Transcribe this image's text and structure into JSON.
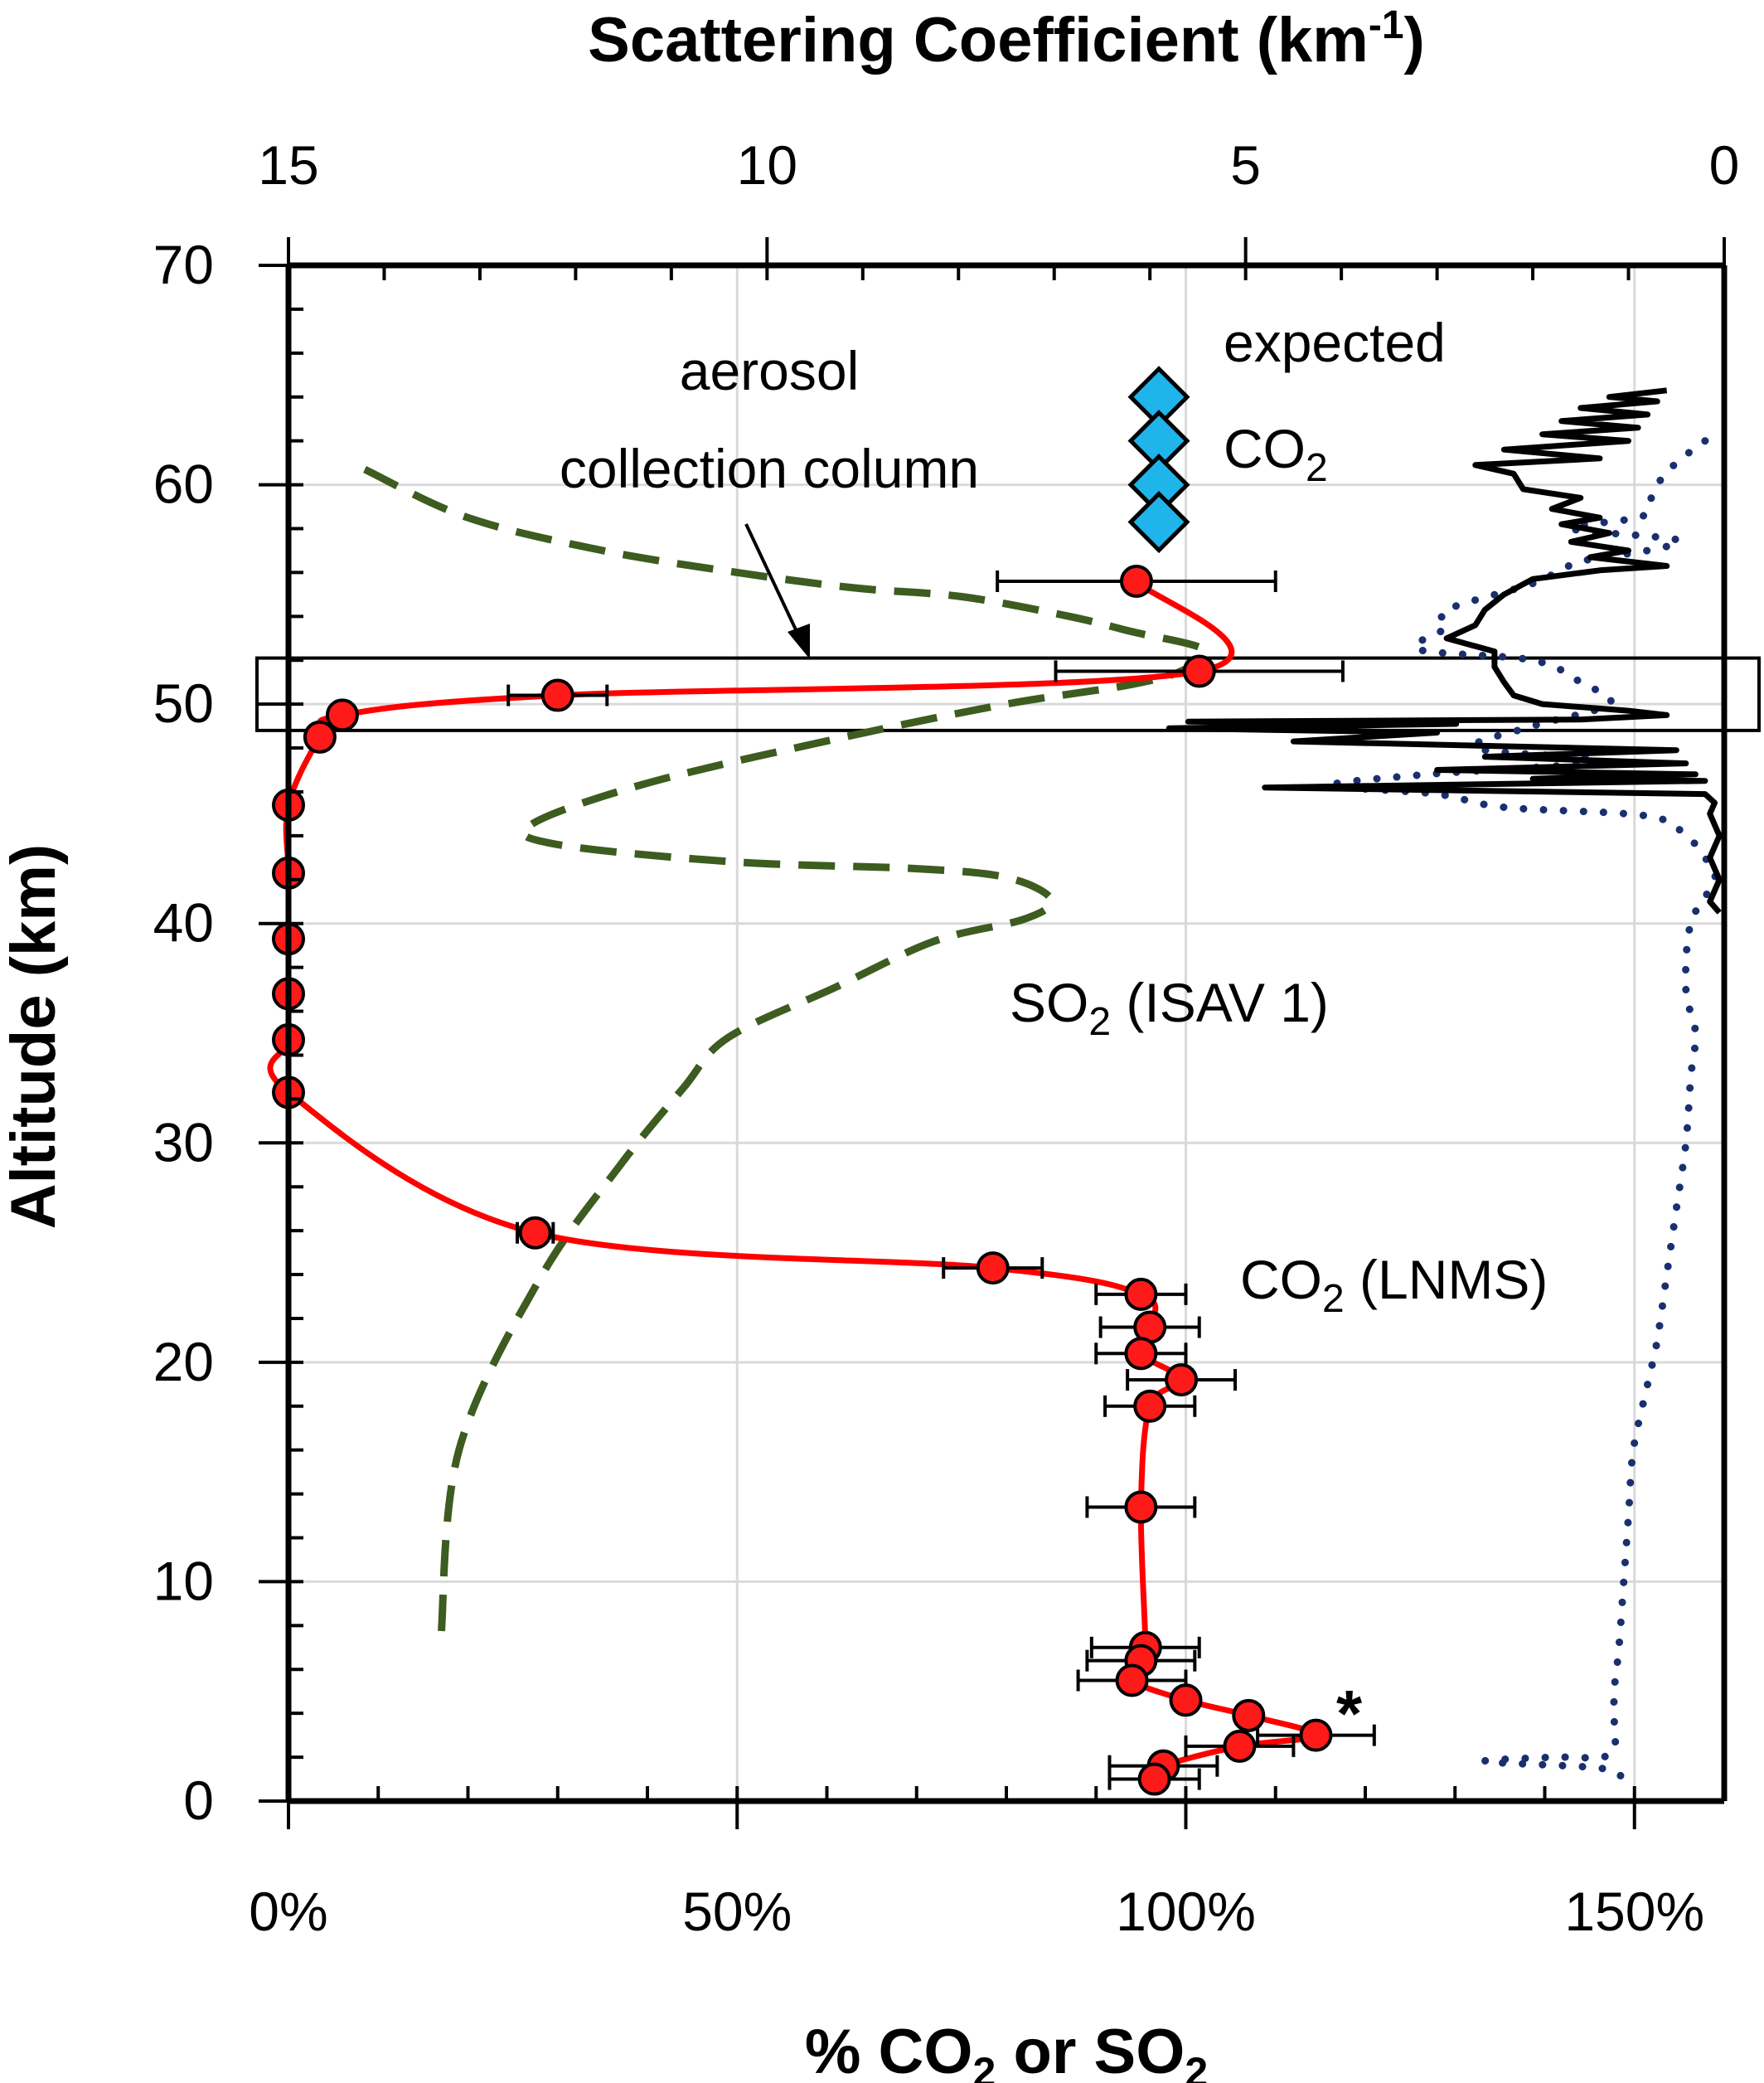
{
  "chart_data": {
    "type": "line",
    "title": "",
    "top_axis": {
      "label": "Scattering Coefficient (km",
      "label_superscript": "-1",
      "label_suffix": ")",
      "range": [
        15,
        0
      ],
      "ticks": [
        15,
        10,
        5,
        0
      ]
    },
    "bottom_axis": {
      "label_parts": [
        "% CO",
        "2",
        " or SO",
        "2"
      ],
      "range": [
        0,
        160
      ],
      "ticks": [
        0,
        50,
        100,
        150
      ],
      "tick_labels": [
        "0%",
        "50%",
        "100%",
        "150%"
      ]
    },
    "y_axis": {
      "label": "Altitude (km)",
      "range": [
        0,
        70
      ],
      "ticks": [
        0,
        10,
        20,
        30,
        40,
        50,
        60,
        70
      ]
    },
    "grid": true,
    "annotations": {
      "aerosol_line1": "aerosol",
      "aerosol_line2": "collection column",
      "expected_line1": "expected",
      "expected_co2_prefix": "CO",
      "expected_co2_sub": "2",
      "so2_label_prefix": "SO",
      "so2_label_sub": "2",
      "so2_label_suffix": " (ISAV 1)",
      "co2_label_prefix": "CO",
      "co2_label_sub": "2",
      "co2_label_suffix": " (LNMS)",
      "asterisk": "*"
    },
    "aerosol_column_km": [
      48.8,
      52.1
    ],
    "series": [
      {
        "name": "CO2 (LNMS)",
        "color": "#ff0000",
        "marker_fill": "#ff1a1a",
        "units": "percent",
        "points": [
          {
            "alt": 55.6,
            "val": 94.5,
            "err": 15.5
          },
          {
            "alt": 51.5,
            "val": 101.5,
            "err": 16
          },
          {
            "alt": 50.4,
            "val": 30.0,
            "err": 5.5
          },
          {
            "alt": 49.5,
            "val": 6.0,
            "err": 0
          },
          {
            "alt": 48.5,
            "val": 3.5,
            "err": 0
          },
          {
            "alt": 45.4,
            "val": 0,
            "err": 0
          },
          {
            "alt": 42.3,
            "val": 0,
            "err": 0
          },
          {
            "alt": 39.3,
            "val": 0,
            "err": 0
          },
          {
            "alt": 36.8,
            "val": 0,
            "err": 0
          },
          {
            "alt": 34.7,
            "val": 0,
            "err": 0
          },
          {
            "alt": 32.3,
            "val": 0,
            "err": 0
          },
          {
            "alt": 25.9,
            "val": 27.5,
            "err": 2
          },
          {
            "alt": 24.3,
            "val": 78.5,
            "err": 5.5
          },
          {
            "alt": 23.1,
            "val": 95.0,
            "err": 5
          },
          {
            "alt": 21.6,
            "val": 96.0,
            "err": 5.5
          },
          {
            "alt": 20.4,
            "val": 95.0,
            "err": 5
          },
          {
            "alt": 19.2,
            "val": 99.5,
            "err": 6
          },
          {
            "alt": 18.0,
            "val": 96.0,
            "err": 5
          },
          {
            "alt": 13.4,
            "val": 95.0,
            "err": 6
          },
          {
            "alt": 7.0,
            "val": 95.5,
            "err": 6
          },
          {
            "alt": 6.4,
            "val": 95.0,
            "err": 6
          },
          {
            "alt": 5.5,
            "val": 94.0,
            "err": 6
          },
          {
            "alt": 4.6,
            "val": 100.0,
            "err": 0
          },
          {
            "alt": 3.9,
            "val": 107.0,
            "err": 0
          },
          {
            "alt": 3.0,
            "val": 114.5,
            "err": 6.5
          },
          {
            "alt": 2.5,
            "val": 106.0,
            "err": 6
          },
          {
            "alt": 1.6,
            "val": 97.5,
            "err": 6
          },
          {
            "alt": 1.0,
            "val": 96.5,
            "err": 5
          }
        ]
      },
      {
        "name": "SO2 (ISAV 1)",
        "color": "#3d5c1f",
        "style": "dashed",
        "units": "percent",
        "points": [
          [
            8.5,
            60.7
          ],
          [
            20,
            58.5
          ],
          [
            35,
            57.0
          ],
          [
            50,
            56.0
          ],
          [
            63,
            55.3
          ],
          [
            75,
            54.9
          ],
          [
            87,
            54.0
          ],
          [
            94,
            53.3
          ],
          [
            102,
            52.5
          ],
          [
            100,
            51.6
          ],
          [
            94,
            50.9
          ],
          [
            80,
            50.0
          ],
          [
            62,
            48.5
          ],
          [
            40,
            46.4
          ],
          [
            27,
            44.5
          ],
          [
            30,
            43.6
          ],
          [
            50,
            42.8
          ],
          [
            70,
            42.5
          ],
          [
            80,
            42.1
          ],
          [
            85,
            41.1
          ],
          [
            82,
            40.2
          ],
          [
            72,
            39.2
          ],
          [
            61,
            37.1
          ],
          [
            49,
            34.8
          ],
          [
            44,
            32.5
          ],
          [
            37,
            29.0
          ],
          [
            28,
            23.8
          ],
          [
            19,
            16.0
          ],
          [
            17,
            7.5
          ]
        ]
      },
      {
        "name": "expected CO2",
        "color": "#1fb4ea",
        "marker": "diamond",
        "units": "percent",
        "points": [
          [
            97,
            64.0
          ],
          [
            97,
            62.0
          ],
          [
            97,
            60.0
          ],
          [
            97,
            58.3
          ]
        ]
      },
      {
        "name": "scattering coefficient (solid)",
        "color": "#000000",
        "style": "solid",
        "units": "km-1",
        "points": [
          [
            0.6,
            64.3
          ],
          [
            1.2,
            64.0
          ],
          [
            0.7,
            63.8
          ],
          [
            1.5,
            63.5
          ],
          [
            0.8,
            63.2
          ],
          [
            1.7,
            62.9
          ],
          [
            0.9,
            62.6
          ],
          [
            1.9,
            62.3
          ],
          [
            1.0,
            62.0
          ],
          [
            2.3,
            61.6
          ],
          [
            1.3,
            61.2
          ],
          [
            2.6,
            60.9
          ],
          [
            2.2,
            60.5
          ],
          [
            2.1,
            59.8
          ],
          [
            1.5,
            59.4
          ],
          [
            1.8,
            58.9
          ],
          [
            1.3,
            58.5
          ],
          [
            1.7,
            58.2
          ],
          [
            1.2,
            57.8
          ],
          [
            1.6,
            57.4
          ],
          [
            1.0,
            57.0
          ],
          [
            1.4,
            56.7
          ],
          [
            0.6,
            56.3
          ],
          [
            1.3,
            56.1
          ],
          [
            2.0,
            55.7
          ],
          [
            2.3,
            55.0
          ],
          [
            2.5,
            54.3
          ],
          [
            2.6,
            53.6
          ],
          [
            2.9,
            53.0
          ],
          [
            2.4,
            52.4
          ],
          [
            2.4,
            51.7
          ],
          [
            2.3,
            51.0
          ],
          [
            2.2,
            50.4
          ],
          [
            1.9,
            50.0
          ],
          [
            1.0,
            49.7
          ],
          [
            0.6,
            49.5
          ],
          [
            1.5,
            49.3
          ],
          [
            5.6,
            49.2
          ],
          [
            2.8,
            49.1
          ],
          [
            5.8,
            48.9
          ],
          [
            3.0,
            48.7
          ],
          [
            4.5,
            48.3
          ],
          [
            0.5,
            47.9
          ],
          [
            2.5,
            47.6
          ],
          [
            0.4,
            47.3
          ],
          [
            3.0,
            47.0
          ],
          [
            0.3,
            46.8
          ],
          [
            2.0,
            46.6
          ],
          [
            0.2,
            46.5
          ],
          [
            4.8,
            46.2
          ],
          [
            0.2,
            45.9
          ],
          [
            0.1,
            45.5
          ],
          [
            0.15,
            45.0
          ],
          [
            0.05,
            44.0
          ],
          [
            0.15,
            43.0
          ],
          [
            0.05,
            42.0
          ],
          [
            0.15,
            41.0
          ],
          [
            0.05,
            40.5
          ]
        ]
      },
      {
        "name": "scattering coefficient (dotted)",
        "color": "#1a2f6e",
        "style": "dotted",
        "units": "km-1",
        "points": [
          [
            0.2,
            62.0
          ],
          [
            0.5,
            61.0
          ],
          [
            0.7,
            60.0
          ],
          [
            0.8,
            59.0
          ],
          [
            0.9,
            58.5
          ],
          [
            1.6,
            58.0
          ],
          [
            0.5,
            57.5
          ],
          [
            0.8,
            57.0
          ],
          [
            1.5,
            56.5
          ],
          [
            2.0,
            55.5
          ],
          [
            2.9,
            54.3
          ],
          [
            2.9,
            53.5
          ],
          [
            3.2,
            52.5
          ],
          [
            2.0,
            52.0
          ],
          [
            1.5,
            51.0
          ],
          [
            1.2,
            50.0
          ],
          [
            2.0,
            49.0
          ],
          [
            2.6,
            48.0
          ],
          [
            1.3,
            47.4
          ],
          [
            3.1,
            46.8
          ],
          [
            4.1,
            46.3
          ],
          [
            3.0,
            45.9
          ],
          [
            2.3,
            45.3
          ],
          [
            0.8,
            44.9
          ],
          [
            0.4,
            44.0
          ],
          [
            0.2,
            43.0
          ],
          [
            0.1,
            42.0
          ],
          [
            0.35,
            40.0
          ],
          [
            0.4,
            37.0
          ],
          [
            0.3,
            35.0
          ],
          [
            0.35,
            33.0
          ],
          [
            0.4,
            30.0
          ],
          [
            0.5,
            27.0
          ],
          [
            0.6,
            24.0
          ],
          [
            0.7,
            21.0
          ],
          [
            0.8,
            19.0
          ],
          [
            0.95,
            16.0
          ],
          [
            1.0,
            13.0
          ],
          [
            1.05,
            10.0
          ],
          [
            1.1,
            7.0
          ],
          [
            1.15,
            5.0
          ],
          [
            1.15,
            3.5
          ],
          [
            1.2,
            2.1
          ],
          [
            1.8,
            2.0
          ],
          [
            2.5,
            1.8
          ],
          [
            1.3,
            1.5
          ],
          [
            1.05,
            1.0
          ]
        ]
      }
    ]
  }
}
